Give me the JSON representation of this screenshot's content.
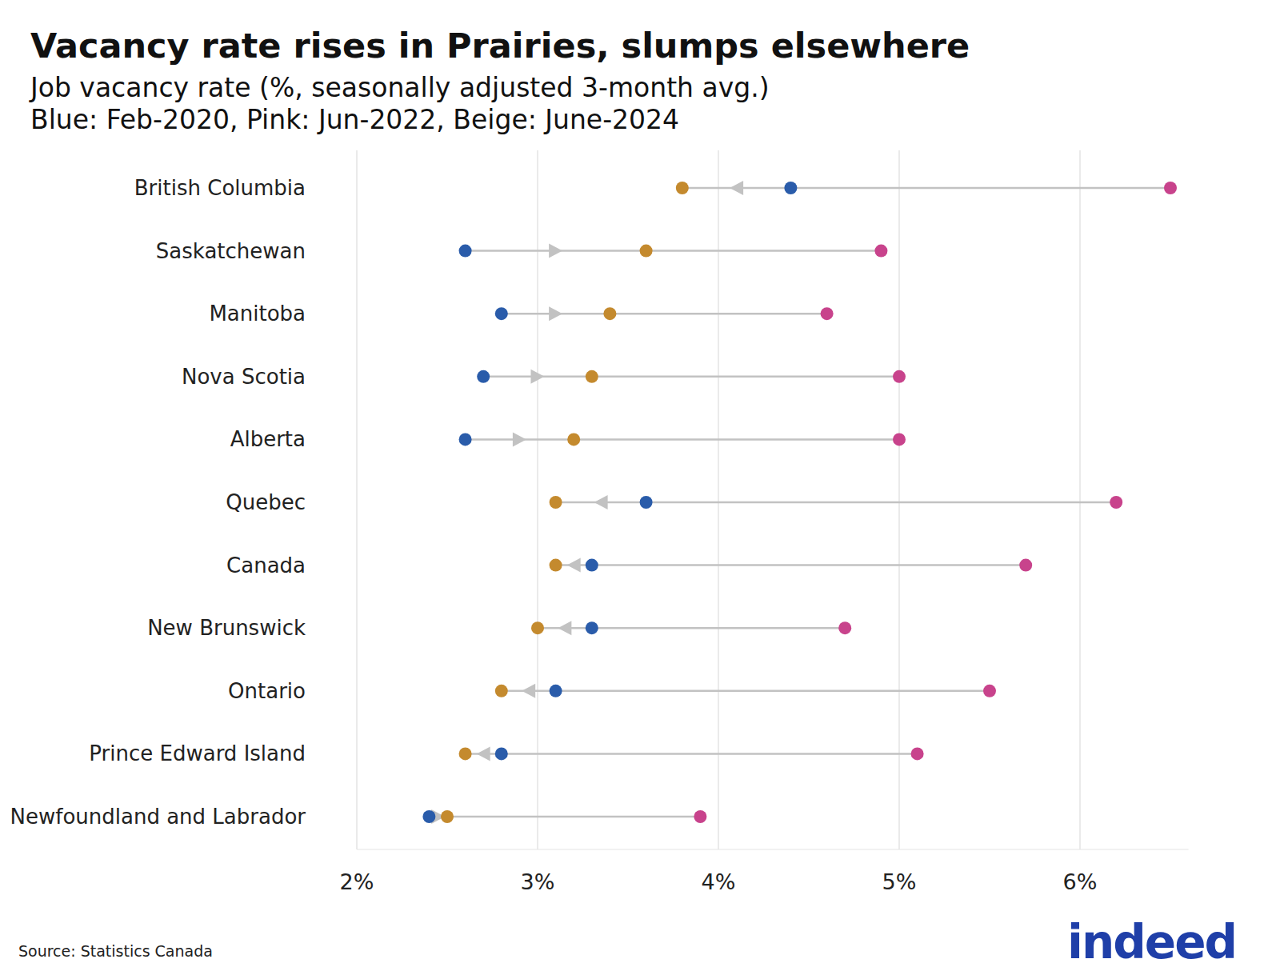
{
  "chart_data": {
    "type": "dot",
    "orientation": "horizontal",
    "title": "Vacancy rate rises in Prairies, slumps elsewhere",
    "subtitle": [
      "Job vacancy rate (%, seasonally adjusted 3-month avg.)",
      "Blue: Feb-2020, Pink: Jun-2022, Beige: June-2024"
    ],
    "source": "Source: Statistics Canada",
    "logo": "indeed",
    "categories": [
      "British Columbia",
      "Saskatchewan",
      "Manitoba",
      "Nova Scotia",
      "Alberta",
      "Quebec",
      "Canada",
      "New Brunswick",
      "Ontario",
      "Prince Edward Island",
      "Newfoundland and Labrador"
    ],
    "series": [
      {
        "color": "#2a5caa",
        "values": [
          4.4,
          2.6,
          2.8,
          2.7,
          2.6,
          3.6,
          3.3,
          3.3,
          3.1,
          2.8,
          2.4
        ]
      },
      {
        "color": "#c8438c",
        "values": [
          6.5,
          4.9,
          4.6,
          5.0,
          5.0,
          6.2,
          5.7,
          4.7,
          5.5,
          5.1,
          3.9
        ]
      },
      {
        "color": "#c48a2e",
        "values": [
          3.8,
          3.6,
          3.4,
          3.3,
          3.2,
          3.1,
          3.1,
          3.0,
          2.8,
          2.6,
          2.5
        ]
      }
    ],
    "xlim": [
      2,
      6.6
    ],
    "xticks": [
      {
        "value": 2,
        "label": "2%"
      },
      {
        "value": 3,
        "label": "3%"
      },
      {
        "value": 4,
        "label": "4%"
      },
      {
        "value": 5,
        "label": "5%"
      },
      {
        "value": 6,
        "label": "6%"
      }
    ],
    "grid": true
  }
}
